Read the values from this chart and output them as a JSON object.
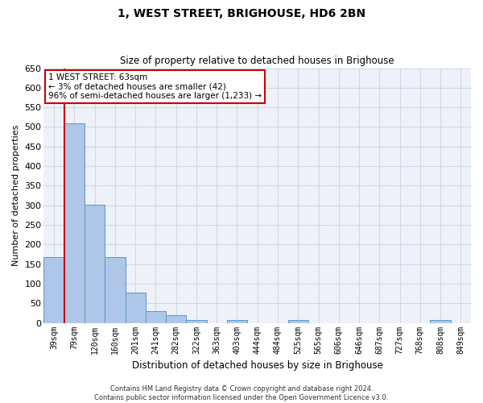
{
  "title": "1, WEST STREET, BRIGHOUSE, HD6 2BN",
  "subtitle": "Size of property relative to detached houses in Brighouse",
  "xlabel": "Distribution of detached houses by size in Brighouse",
  "ylabel": "Number of detached properties",
  "bar_labels": [
    "39sqm",
    "79sqm",
    "120sqm",
    "160sqm",
    "201sqm",
    "241sqm",
    "282sqm",
    "322sqm",
    "363sqm",
    "403sqm",
    "444sqm",
    "484sqm",
    "525sqm",
    "565sqm",
    "606sqm",
    "646sqm",
    "687sqm",
    "727sqm",
    "768sqm",
    "808sqm",
    "849sqm"
  ],
  "bar_values": [
    168,
    510,
    302,
    168,
    78,
    31,
    20,
    7,
    0,
    8,
    0,
    0,
    8,
    0,
    0,
    0,
    0,
    0,
    0,
    7,
    0
  ],
  "bar_color": "#aec6e8",
  "bar_edge_color": "#5a96c8",
  "ylim": [
    0,
    650
  ],
  "yticks": [
    0,
    50,
    100,
    150,
    200,
    250,
    300,
    350,
    400,
    450,
    500,
    550,
    600,
    650
  ],
  "vline_x_idx": 1,
  "vline_color": "#cc0000",
  "annotation_text": "1 WEST STREET: 63sqm\n← 3% of detached houses are smaller (42)\n96% of semi-detached houses are larger (1,233) →",
  "annotation_box_color": "#ffffff",
  "annotation_box_edge": "#cc0000",
  "grid_color": "#d0d8e8",
  "bg_color": "#eef2f8",
  "footnote": "Contains HM Land Registry data © Crown copyright and database right 2024.\nContains public sector information licensed under the Open Government Licence v3.0."
}
